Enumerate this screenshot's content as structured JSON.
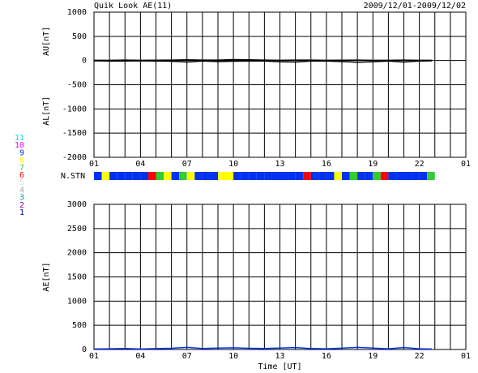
{
  "chart_data": [
    {
      "type": "line",
      "title": "Quik Look AE(11)",
      "subtitle": "2009/12/01-2009/12/02",
      "ylabels": [
        "AU[nT]",
        "AL[nT]"
      ],
      "xlim": [
        0,
        24
      ],
      "xticks": [
        {
          "value": 0,
          "label": "01"
        },
        {
          "value": 3,
          "label": "04"
        },
        {
          "value": 6,
          "label": "07"
        },
        {
          "value": 9,
          "label": "10"
        },
        {
          "value": 12,
          "label": "13"
        },
        {
          "value": 15,
          "label": "16"
        },
        {
          "value": 18,
          "label": "19"
        },
        {
          "value": 21,
          "label": "22"
        },
        {
          "value": 24,
          "label": "01"
        }
      ],
      "xgrid": [
        0,
        1,
        2,
        3,
        4,
        5,
        6,
        7,
        8,
        9,
        10,
        11,
        12,
        13,
        14,
        15,
        16,
        17,
        18,
        19,
        20,
        21,
        22,
        23,
        24
      ],
      "ylim": [
        -2000,
        1000
      ],
      "yticks": [
        -2000,
        -1500,
        -1000,
        -500,
        0,
        500,
        1000
      ],
      "x": [
        0,
        1,
        2,
        3,
        4,
        5,
        6,
        7,
        8,
        9,
        10,
        11,
        12,
        13,
        14,
        15,
        16,
        17,
        18,
        19,
        20,
        21,
        21.8
      ],
      "series": [
        {
          "color": "#000000",
          "values": [
            5,
            5,
            10,
            5,
            8,
            10,
            15,
            10,
            10,
            20,
            15,
            10,
            5,
            10,
            10,
            5,
            8,
            10,
            5,
            5,
            10,
            5,
            5
          ]
        },
        {
          "color": "#000000",
          "values": [
            -5,
            -10,
            -10,
            -5,
            -10,
            -15,
            -30,
            -10,
            -20,
            -15,
            -10,
            -10,
            -25,
            -30,
            -10,
            -10,
            -20,
            -35,
            -25,
            -10,
            -30,
            -10,
            -5
          ]
        }
      ]
    },
    {
      "type": "strip",
      "ylabel": "N.STN",
      "xlim": [
        0,
        24
      ],
      "bins": [
        0,
        0.5,
        1,
        1.5,
        2,
        2.5,
        3,
        3.5,
        4,
        4.5,
        5,
        5.5,
        6,
        6.5,
        7,
        7.5,
        8,
        8.5,
        9,
        9.5,
        10,
        10.5,
        11,
        11.5,
        12,
        12.5,
        13,
        13.5,
        14,
        14.5,
        15,
        15.5,
        16,
        16.5,
        17,
        17.5,
        18,
        18.5,
        19,
        19.5,
        20,
        20.5,
        21,
        21.5,
        22
      ],
      "values": [
        9,
        8,
        9,
        9,
        9,
        9,
        9,
        6,
        7,
        8,
        9,
        7,
        8,
        9,
        9,
        9,
        8,
        8,
        9,
        9,
        9,
        9,
        9,
        9,
        9,
        9,
        9,
        6,
        9,
        9,
        9,
        8,
        9,
        7,
        9,
        9,
        7,
        6,
        9,
        9,
        9,
        9,
        9,
        7
      ],
      "levels": [
        11,
        10,
        9,
        8,
        7,
        6,
        5,
        4,
        3,
        2,
        1
      ],
      "level_colors": [
        "#00dede",
        "#ff00ff",
        "#0033ee",
        "#ffff00",
        "#33cc33",
        "#ff0000",
        "#dddddd",
        "#aaaaaa",
        "#009999",
        "#990099",
        "#0000aa"
      ]
    },
    {
      "type": "line",
      "ylabels": [
        "AE[nT]"
      ],
      "xlabel": "Time [UT]",
      "xlim": [
        0,
        24
      ],
      "xticks": [
        {
          "value": 0,
          "label": "01"
        },
        {
          "value": 3,
          "label": "04"
        },
        {
          "value": 6,
          "label": "07"
        },
        {
          "value": 9,
          "label": "10"
        },
        {
          "value": 12,
          "label": "13"
        },
        {
          "value": 15,
          "label": "16"
        },
        {
          "value": 18,
          "label": "19"
        },
        {
          "value": 21,
          "label": "22"
        },
        {
          "value": 24,
          "label": "01"
        }
      ],
      "xgrid": [
        0,
        1,
        2,
        3,
        4,
        5,
        6,
        7,
        8,
        9,
        10,
        11,
        12,
        13,
        14,
        15,
        16,
        17,
        18,
        19,
        20,
        21,
        22,
        23,
        24
      ],
      "ylim": [
        0,
        3000
      ],
      "yticks": [
        0,
        500,
        1000,
        1500,
        2000,
        2500,
        3000
      ],
      "x": [
        0,
        1,
        2,
        3,
        4,
        5,
        6,
        7,
        8,
        9,
        10,
        11,
        12,
        13,
        14,
        15,
        16,
        17,
        18,
        19,
        20,
        21,
        21.8
      ],
      "series": [
        {
          "color": "#0033ee",
          "values": [
            10,
            15,
            20,
            10,
            18,
            25,
            45,
            20,
            30,
            35,
            25,
            20,
            30,
            40,
            20,
            15,
            28,
            45,
            30,
            15,
            40,
            15,
            10
          ]
        }
      ]
    }
  ]
}
